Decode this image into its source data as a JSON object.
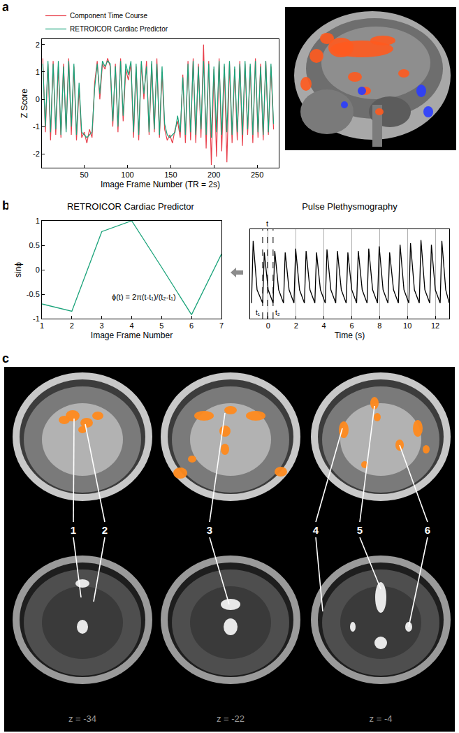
{
  "panel_labels": [
    "a",
    "b",
    "c"
  ],
  "chart_data": [
    {
      "type": "line",
      "xlabel": "Image Frame Number (TR = 2s)",
      "ylabel": "Z Score",
      "x": [
        2,
        5,
        8,
        11,
        14,
        17,
        20,
        23,
        26,
        29,
        32,
        35,
        38,
        41,
        44,
        47,
        50,
        53,
        56,
        59,
        62,
        65,
        68,
        71,
        74,
        77,
        80,
        83,
        86,
        89,
        92,
        95,
        98,
        101,
        104,
        107,
        110,
        113,
        116,
        119,
        122,
        125,
        128,
        131,
        134,
        137,
        140,
        143,
        146,
        149,
        152,
        155,
        158,
        161,
        164,
        167,
        170,
        173,
        176,
        179,
        182,
        185,
        188,
        191,
        194,
        197,
        200,
        203,
        206,
        209,
        212,
        215,
        218,
        221,
        224,
        227,
        230,
        233,
        236,
        239,
        242,
        245,
        248,
        251,
        254,
        257,
        260,
        263,
        266,
        269
      ],
      "series": [
        {
          "name": "Component Time Course",
          "color": "#e8404c",
          "values": [
            1.5,
            -1.2,
            1.3,
            -1.5,
            1.4,
            -1.3,
            1.2,
            -1.4,
            1.3,
            -1.1,
            1.5,
            -1.3,
            1.2,
            -1.5,
            0.4,
            -1.4,
            -1.2,
            -1.6,
            -1.1,
            -1.4,
            0.6,
            1.4,
            0.0,
            1.3,
            1.1,
            1.5,
            1.2,
            -1.0,
            1.3,
            -1.2,
            1.5,
            -0.8,
            1.1,
            0.7,
            1.3,
            -1.4,
            1.2,
            -1.5,
            1.3,
            0.0,
            1.4,
            -1.3,
            1.3,
            -1.2,
            1.5,
            -1.4,
            1.0,
            -1.1,
            -1.5,
            -1.3,
            -1.6,
            -1.1,
            -0.8,
            -1.4,
            0.9,
            -1.6,
            1.4,
            -1.5,
            1.5,
            -1.6,
            1.3,
            -1.4,
            2.0,
            -1.8,
            1.4,
            -2.4,
            1.1,
            -2.1,
            1.5,
            -1.9,
            1.2,
            -2.3,
            1.3,
            -1.6,
            1.1,
            -1.5,
            1.4,
            -1.7,
            1.3,
            -1.3,
            1.2,
            -1.6,
            1.5,
            -1.4,
            1.3,
            -1.5,
            1.4,
            -1.3,
            1.2,
            -1.1
          ]
        },
        {
          "name": "RETROICOR Cardiac Predictor",
          "color": "#1aa37a",
          "values": [
            1.3,
            -1.0,
            1.4,
            -1.2,
            1.3,
            -1.1,
            1.4,
            -1.3,
            1.2,
            -1.2,
            1.4,
            -1.0,
            1.3,
            -1.3,
            0.6,
            -1.2,
            -1.3,
            -1.4,
            -1.3,
            -1.2,
            0.4,
            1.3,
            0.2,
            1.4,
            1.2,
            1.4,
            1.3,
            -0.8,
            1.2,
            -1.0,
            1.4,
            -0.6,
            1.3,
            0.9,
            1.4,
            -1.2,
            1.3,
            -1.3,
            1.4,
            0.2,
            1.2,
            -1.2,
            1.4,
            -1.1,
            1.3,
            -1.3,
            1.2,
            -0.9,
            -1.3,
            -1.4,
            -1.3,
            -1.2,
            -0.6,
            -1.2,
            0.8,
            -1.3,
            1.3,
            -1.2,
            1.4,
            -1.3,
            1.2,
            -1.1,
            1.4,
            -1.3,
            1.3,
            -1.4,
            1.2,
            -1.2,
            1.4,
            -1.3,
            1.3,
            -1.2,
            1.4,
            -1.3,
            1.2,
            -1.2,
            1.3,
            -1.3,
            1.4,
            -1.1,
            1.3,
            -1.3,
            1.4,
            -1.2,
            1.2,
            -1.3,
            1.4,
            -1.2,
            1.3,
            -0.9
          ]
        }
      ],
      "xlim": [
        1,
        275
      ],
      "xticks": [
        50,
        100,
        150,
        200,
        250
      ],
      "ylim": [
        -2.5,
        2.2
      ],
      "yticks": [
        -2,
        -1,
        0,
        1,
        2
      ],
      "legend": "upper left",
      "grid": false
    },
    {
      "type": "line",
      "title": "RETROICOR Cardiac Predictor",
      "xlabel": "Image Frame Number",
      "ylabel": "sinϕ",
      "x": [
        1,
        2,
        3,
        4,
        5,
        6,
        7
      ],
      "values": [
        -0.7,
        -0.85,
        0.78,
        1.0,
        0.05,
        -0.92,
        0.32
      ],
      "color": "#1aa37a",
      "xlim": [
        1,
        7
      ],
      "xticks": [
        1,
        2,
        3,
        4,
        5,
        6,
        7
      ],
      "ylim": [
        -1,
        1
      ],
      "yticks": [
        -1,
        -0.5,
        0,
        0.5,
        1
      ],
      "annotations": [
        {
          "text": "ϕ(t) = 2π(t-t₁)/(t₂-t₁)",
          "x": 4.4,
          "y": -0.55
        }
      ],
      "grid": false
    },
    {
      "type": "line",
      "title": "Pulse Plethysmography",
      "xlabel": "Time (s)",
      "x": [
        -1.2,
        -1.08,
        -0.8,
        -0.4,
        -0.28,
        0.0,
        0.35,
        0.47,
        0.75,
        1.1,
        1.22,
        1.5,
        1.85,
        1.97,
        2.25,
        2.6,
        2.72,
        3.0,
        3.35,
        3.47,
        3.75,
        4.1,
        4.22,
        4.5,
        4.85,
        4.97,
        5.25,
        5.6,
        5.72,
        6.0,
        6.35,
        6.47,
        6.75,
        7.1,
        7.22,
        7.5,
        7.85,
        7.97,
        8.25,
        8.6,
        8.72,
        9.0,
        9.35,
        9.47,
        9.75,
        10.1,
        10.22,
        10.5,
        10.85,
        10.97,
        11.25,
        11.6,
        11.72,
        12.0,
        12.35,
        12.47,
        12.75,
        13.0
      ],
      "values": [
        0.05,
        0.85,
        0.22,
        0.05,
        0.7,
        0.22,
        0.05,
        0.72,
        0.22,
        0.05,
        0.7,
        0.22,
        0.05,
        0.75,
        0.22,
        0.05,
        0.72,
        0.22,
        0.05,
        0.7,
        0.22,
        0.05,
        0.74,
        0.22,
        0.05,
        0.72,
        0.22,
        0.05,
        0.7,
        0.22,
        0.05,
        0.72,
        0.22,
        0.05,
        0.75,
        0.22,
        0.05,
        0.78,
        0.22,
        0.05,
        0.7,
        0.22,
        0.05,
        0.8,
        0.22,
        0.05,
        0.82,
        0.22,
        0.05,
        0.86,
        0.22,
        0.05,
        0.8,
        0.22,
        0.05,
        0.85,
        0.22,
        0.05
      ],
      "color": "#000000",
      "xlim": [
        -1.3,
        13
      ],
      "xticks": [
        0,
        2,
        4,
        6,
        8,
        10,
        12
      ],
      "ylim": [
        -0.15,
        1
      ],
      "tick_labels": "x",
      "grid": true,
      "annotations": [
        {
          "text": "t",
          "x": -0.05
        },
        {
          "text": "t₁",
          "x": -0.4
        },
        {
          "text": "t₂",
          "x": 0.35
        }
      ]
    }
  ],
  "panel_c": {
    "labels": [
      "1",
      "2",
      "3",
      "4",
      "5",
      "6"
    ],
    "slices": [
      "z = -34",
      "z = -22",
      "z = -4"
    ]
  }
}
